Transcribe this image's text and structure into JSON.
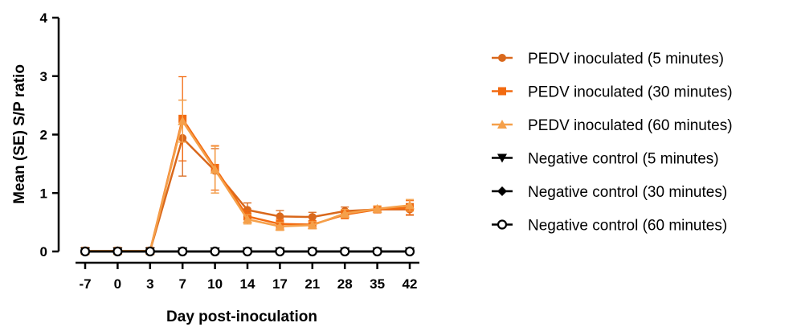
{
  "chart_data": {
    "type": "line",
    "title": "",
    "xlabel": "Day post-inoculation",
    "ylabel": "Mean (SE) S/P ratio",
    "categories": [
      "-7",
      "0",
      "3",
      "7",
      "10",
      "14",
      "17",
      "21",
      "28",
      "35",
      "42"
    ],
    "ylim": [
      0,
      4
    ],
    "yticks": [
      "0",
      "1",
      "2",
      "3",
      "4"
    ],
    "grid": false,
    "legend_position": "right",
    "series": [
      {
        "name": "PEDV inoculated (5 minutes)",
        "color": "#D9681C",
        "marker": "circle",
        "values": [
          0.01,
          0.01,
          0.01,
          1.94,
          1.38,
          0.71,
          0.6,
          0.59,
          0.69,
          0.72,
          0.72
        ],
        "errors": [
          0.01,
          0.01,
          0.01,
          0.65,
          0.38,
          0.12,
          0.1,
          0.08,
          0.07,
          0.05,
          0.1
        ]
      },
      {
        "name": "PEDV inoculated (30 minutes)",
        "color": "#F26A10",
        "marker": "square",
        "values": [
          0.01,
          0.01,
          0.01,
          2.27,
          1.43,
          0.6,
          0.47,
          0.46,
          0.63,
          0.72,
          0.75
        ],
        "errors": [
          0.01,
          0.01,
          0.01,
          0.72,
          0.38,
          0.1,
          0.08,
          0.07,
          0.07,
          0.05,
          0.12
        ]
      },
      {
        "name": "PEDV inoculated (60 minutes)",
        "color": "#F5A04A",
        "marker": "triangle-up",
        "values": [
          0.01,
          0.01,
          0.01,
          2.23,
          1.4,
          0.55,
          0.43,
          0.45,
          0.65,
          0.73,
          0.79
        ],
        "errors": [
          0.01,
          0.01,
          0.01,
          0.36,
          0.4,
          0.08,
          0.07,
          0.06,
          0.07,
          0.05,
          0.1
        ]
      },
      {
        "name": "Negative control (5 minutes)",
        "color": "#000000",
        "marker": "triangle-down",
        "values": [
          0,
          0,
          0,
          0,
          0,
          0,
          0,
          0,
          0,
          0,
          0
        ],
        "errors": [
          0,
          0,
          0,
          0,
          0,
          0,
          0,
          0,
          0,
          0,
          0
        ]
      },
      {
        "name": "Negative control (30 minutes)",
        "color": "#000000",
        "marker": "diamond",
        "values": [
          0,
          0,
          0,
          0,
          0,
          0,
          0,
          0,
          0,
          0,
          0
        ],
        "errors": [
          0,
          0,
          0,
          0,
          0,
          0,
          0,
          0,
          0,
          0,
          0
        ]
      },
      {
        "name": "Negative control (60 minutes)",
        "color": "#000000",
        "marker": "circle-open",
        "values": [
          0,
          0,
          0,
          0,
          0,
          0,
          0,
          0,
          0,
          0,
          0
        ],
        "errors": [
          0,
          0,
          0,
          0,
          0,
          0,
          0,
          0,
          0,
          0,
          0
        ]
      }
    ]
  }
}
